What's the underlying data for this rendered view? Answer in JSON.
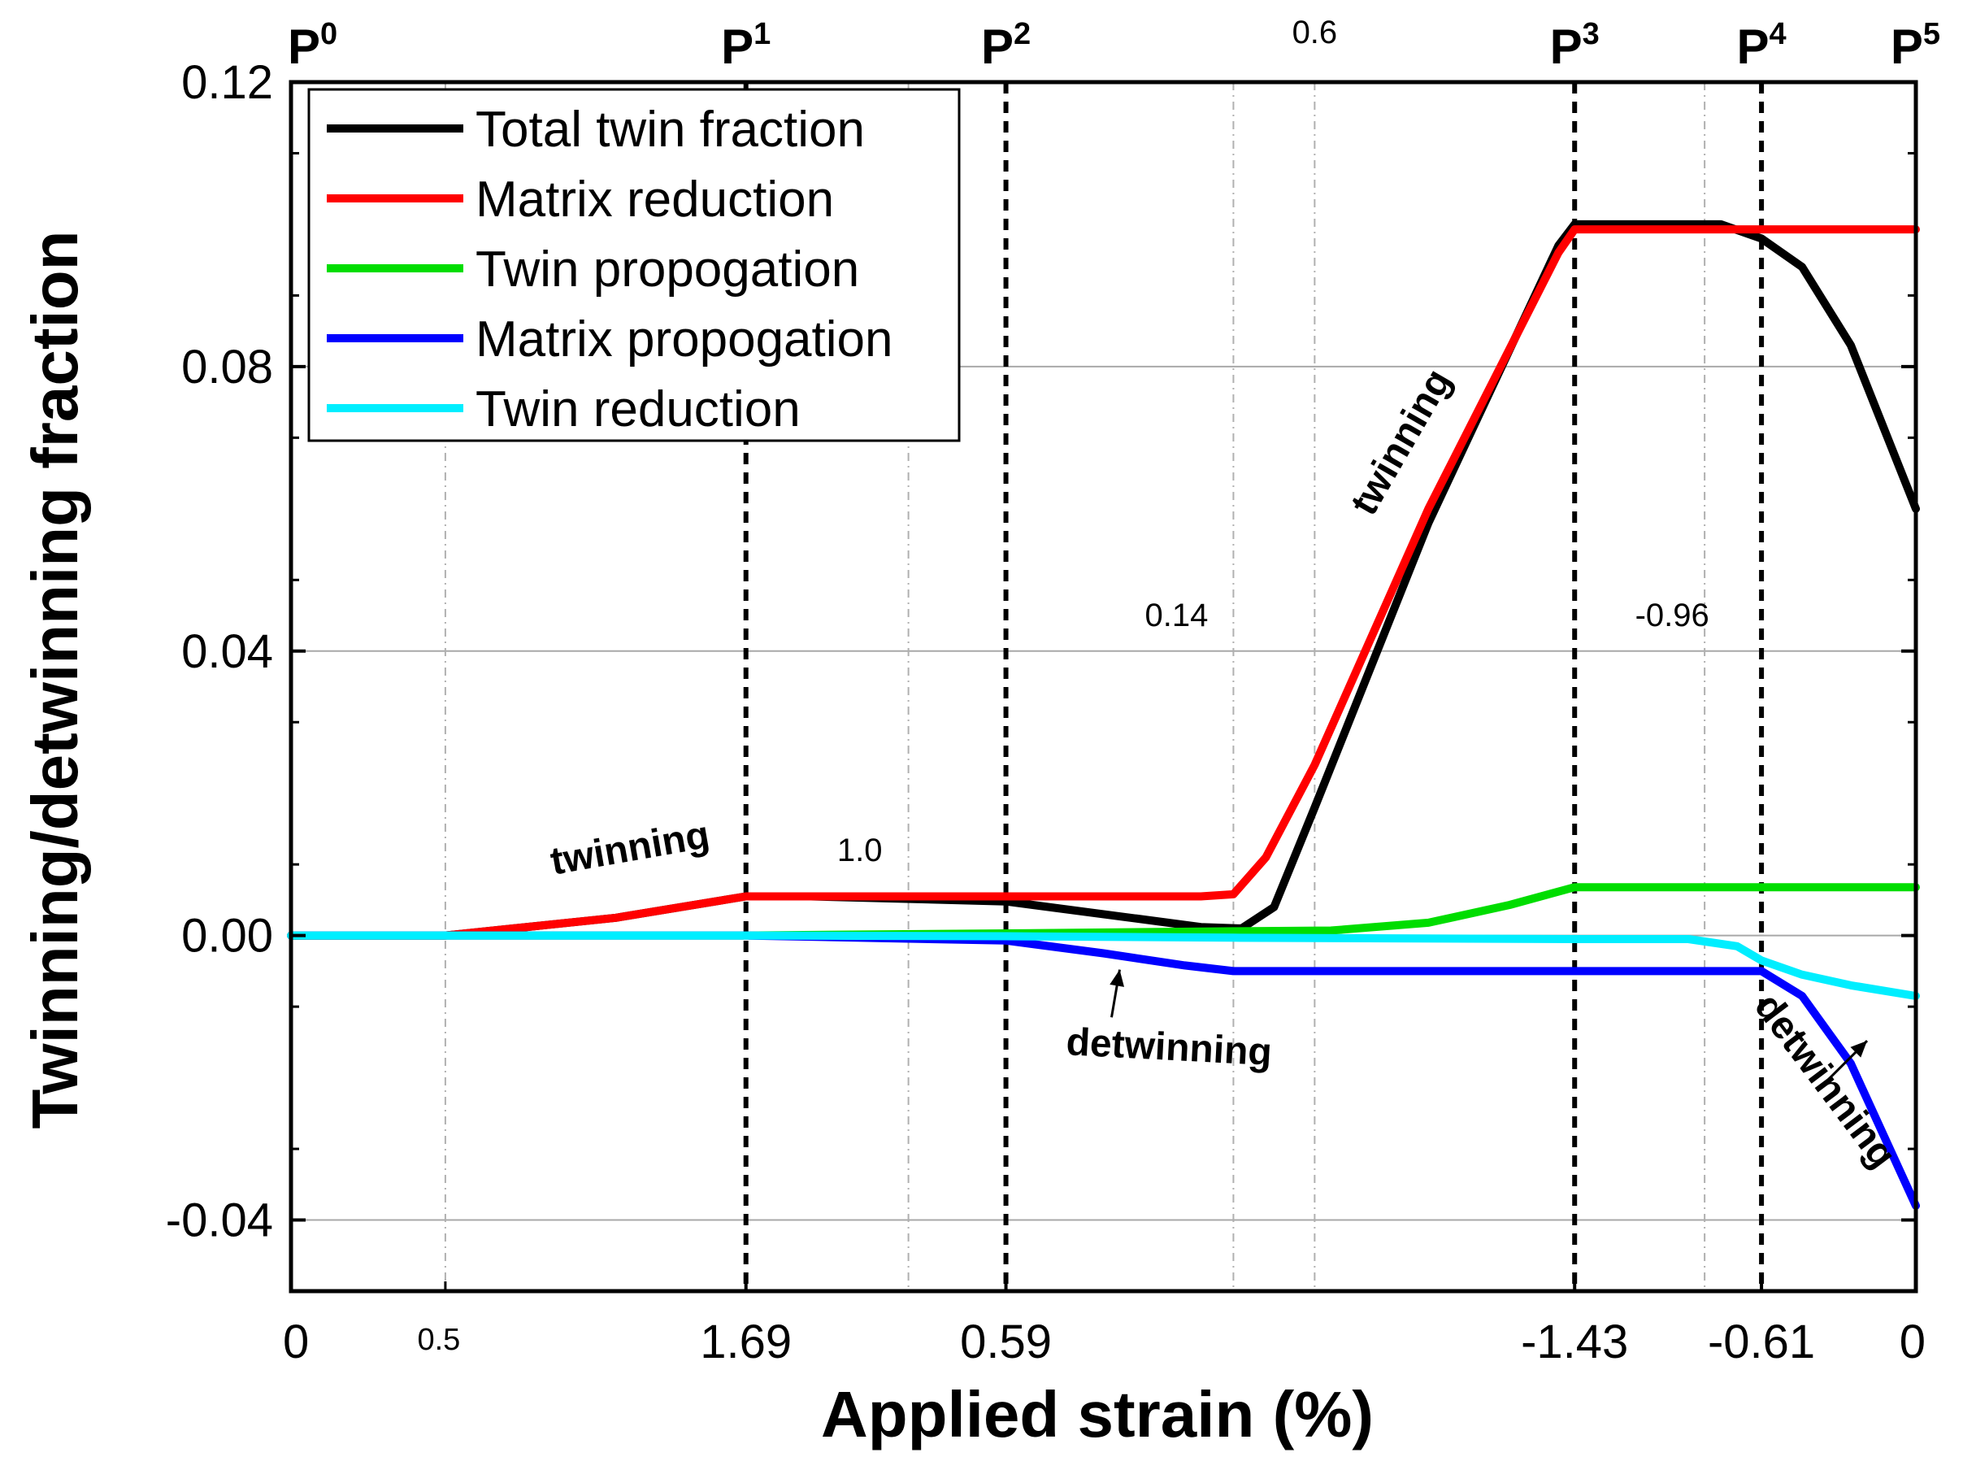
{
  "chart_data": {
    "type": "line",
    "xlabel": "Applied strain (%)",
    "ylabel": "Twinning/detwinning fraction",
    "ylim": [
      -0.05,
      0.12
    ],
    "xlim": [
      0,
      10
    ],
    "yticks": [
      "0.12",
      "0.08",
      "0.04",
      "0.00",
      "-0.04"
    ],
    "ytick_values": [
      0.12,
      0.08,
      0.04,
      0.0,
      -0.04
    ],
    "xticks_major": [
      {
        "label": "0",
        "x": 0
      },
      {
        "label": "1.69",
        "x": 2.8
      },
      {
        "label": "0.59",
        "x": 4.4
      },
      {
        "label": "-1.43",
        "x": 7.9
      },
      {
        "label": "-0.61",
        "x": 9.05
      },
      {
        "label": "0",
        "x": 10
      }
    ],
    "xticks_minor": [
      {
        "label": "0.5",
        "x": 0.95
      }
    ],
    "points": [
      {
        "name": "P",
        "sup": "0",
        "x": 0,
        "dashed": false
      },
      {
        "name": "P",
        "sup": "1",
        "x": 2.8,
        "dashed": true
      },
      {
        "name": "P",
        "sup": "2",
        "x": 4.4,
        "dashed": true
      },
      {
        "name": "P",
        "sup": "3",
        "x": 7.9,
        "dashed": true
      },
      {
        "name": "P",
        "sup": "4",
        "x": 9.05,
        "dashed": true
      },
      {
        "name": "P",
        "sup": "5",
        "x": 10,
        "dashed": false
      }
    ],
    "gridlines_x": [
      0.95,
      3.8,
      5.8,
      6.3,
      8.7
    ],
    "region_labels": [
      {
        "text": "0.6",
        "x": 6.3,
        "y": 0.1255
      },
      {
        "text": "1.0",
        "x": 3.5,
        "y": 0.0105
      },
      {
        "text": "0.14",
        "x": 5.45,
        "y": 0.0435
      },
      {
        "text": "-0.96",
        "x": 8.5,
        "y": 0.0435
      }
    ],
    "series": [
      {
        "name": "Total twin fraction",
        "color": "#000000",
        "x": [
          0,
          0.95,
          2.0,
          2.8,
          3.2,
          4.4,
          5.0,
          5.6,
          5.85,
          6.05,
          6.3,
          7.0,
          7.8,
          7.9,
          8.3,
          8.8,
          9.05,
          9.3,
          9.6,
          10.0
        ],
        "y": [
          0,
          0,
          0.0025,
          0.0055,
          0.0055,
          0.0048,
          0.003,
          0.0012,
          0.001,
          0.004,
          0.018,
          0.058,
          0.097,
          0.1,
          0.1,
          0.1,
          0.098,
          0.094,
          0.083,
          0.06
        ]
      },
      {
        "name": "Matrix reduction",
        "color": "#ff0000",
        "x": [
          0,
          0.95,
          2.0,
          2.8,
          3.2,
          4.4,
          5.0,
          5.6,
          5.8,
          6.0,
          6.3,
          7.0,
          7.8,
          7.9,
          8.5,
          9.05,
          10.0
        ],
        "y": [
          0,
          0,
          0.0025,
          0.0055,
          0.0055,
          0.0055,
          0.0055,
          0.0055,
          0.0058,
          0.011,
          0.024,
          0.06,
          0.096,
          0.0993,
          0.0993,
          0.0993,
          0.0993
        ]
      },
      {
        "name": "Twin propogation",
        "color": "#00dd00",
        "x": [
          0,
          2.8,
          4.4,
          5.8,
          6.4,
          7.0,
          7.5,
          7.9,
          8.5,
          9.05,
          10.0
        ],
        "y": [
          0,
          0,
          0.0003,
          0.0006,
          0.0007,
          0.0018,
          0.0043,
          0.0068,
          0.0068,
          0.0068,
          0.0068
        ]
      },
      {
        "name": "Matrix propogation",
        "color": "#0000ff",
        "x": [
          0,
          2.8,
          4.4,
          5.0,
          5.5,
          5.8,
          6.3,
          7.9,
          8.7,
          9.05,
          9.3,
          9.6,
          10.0
        ],
        "y": [
          0,
          0,
          -0.0007,
          -0.0025,
          -0.0042,
          -0.005,
          -0.005,
          -0.005,
          -0.005,
          -0.005,
          -0.0085,
          -0.018,
          -0.038
        ]
      },
      {
        "name": "Twin reduction",
        "color": "#00eeff",
        "x": [
          0,
          2.8,
          4.4,
          5.8,
          7.9,
          8.6,
          8.9,
          9.05,
          9.3,
          9.6,
          10.0
        ],
        "y": [
          0,
          0,
          -0.0001,
          -0.0003,
          -0.0005,
          -0.0005,
          -0.0015,
          -0.0035,
          -0.0055,
          -0.007,
          -0.0085
        ]
      }
    ],
    "annotations": [
      {
        "text": "twinning",
        "x": 2.1,
        "y": 0.0105,
        "angle": -10
      },
      {
        "text": "twinning",
        "x": 6.9,
        "y": 0.0685,
        "angle": -60
      },
      {
        "text": "detwinning",
        "x": 5.4,
        "y": -0.0175,
        "angle": 3
      },
      {
        "text": "detwinning",
        "x": 9.38,
        "y": -0.0215,
        "angle": 53
      }
    ],
    "arrows": [
      {
        "from": [
          5.05,
          -0.0115
        ],
        "to": [
          5.1,
          -0.0048
        ]
      },
      {
        "from": [
          9.45,
          -0.0205
        ],
        "to": [
          9.7,
          -0.0148
        ]
      }
    ],
    "legend": {
      "position": "top-left"
    }
  }
}
